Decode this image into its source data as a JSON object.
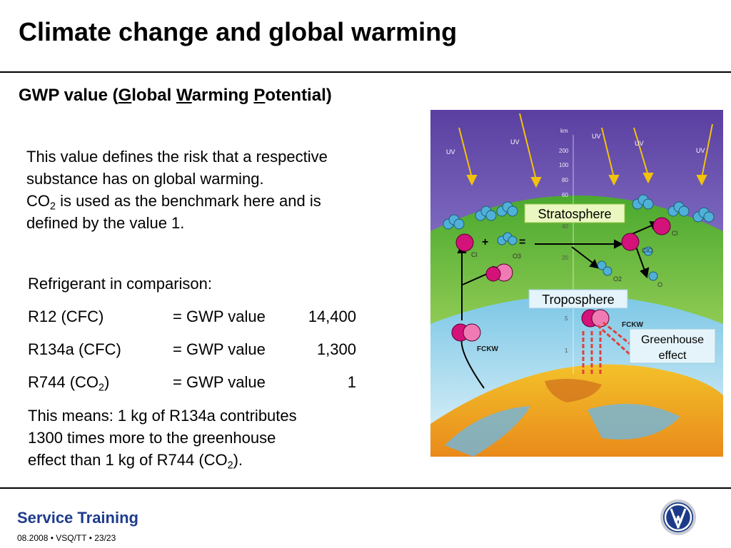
{
  "slide": {
    "title": "Climate change and global warming",
    "subtitle_parts": [
      "GWP value (",
      "G",
      "lobal ",
      "W",
      "arming ",
      "P",
      "otential)"
    ]
  },
  "intro": {
    "line1": "This value defines the risk that a respective",
    "line2": "substance has on global warming.",
    "co2_prefix": "CO",
    "co2_sub": "2",
    "line3_rest": " is used as the benchmark here and is",
    "line4": "defined by the value 1."
  },
  "comparison": {
    "heading": "Refrigerant in comparison:",
    "rows": [
      {
        "name": "R12 (CFC)",
        "label": "= GWP value",
        "value": "14,400"
      },
      {
        "name": "R134a (CFC)",
        "label": "= GWP value",
        "value": "1,300"
      },
      {
        "name_prefix": "R744 (CO",
        "name_sub": "2",
        "name_suffix": ")",
        "label": "= GWP value",
        "value": "1"
      }
    ],
    "conclusion_line1": "This means: 1 kg of R134a contributes",
    "conclusion_line2": "1300 times more to the greenhouse",
    "conclusion_line3_prefix": "effect than 1 kg of R744 (CO",
    "conclusion_line3_sub": "2",
    "conclusion_line3_suffix": ")."
  },
  "figure": {
    "stratosphere_label": "Stratosphere",
    "troposphere_label": "Troposphere",
    "greenhouse_line1": "Greenhouse",
    "greenhouse_line2": "effect",
    "uv_label": "UV",
    "km_label": "km",
    "altitude_ticks": [
      "200",
      "100",
      "80",
      "60",
      "50",
      "40",
      "20",
      "5",
      "1"
    ],
    "cl_label": "Cl",
    "o3_label": "O3",
    "clo_label": "ClO",
    "o2_label": "O2",
    "o_label": "O",
    "fckw_label": "FCKW"
  },
  "footer": {
    "brand": "Service Training",
    "meta": "08.2008 • VSQ/TT • 23/23"
  },
  "colors": {
    "footer_blue": "#1f3b8c",
    "sky_top": "#5a3fa0",
    "stratosphere_green": "#5fb93a",
    "troposphere_blue": "#bfe3f0",
    "molecule_magenta": "#d3127a",
    "arrow_yellow": "#f2c20b",
    "greenhouse_red": "#e0403a"
  }
}
